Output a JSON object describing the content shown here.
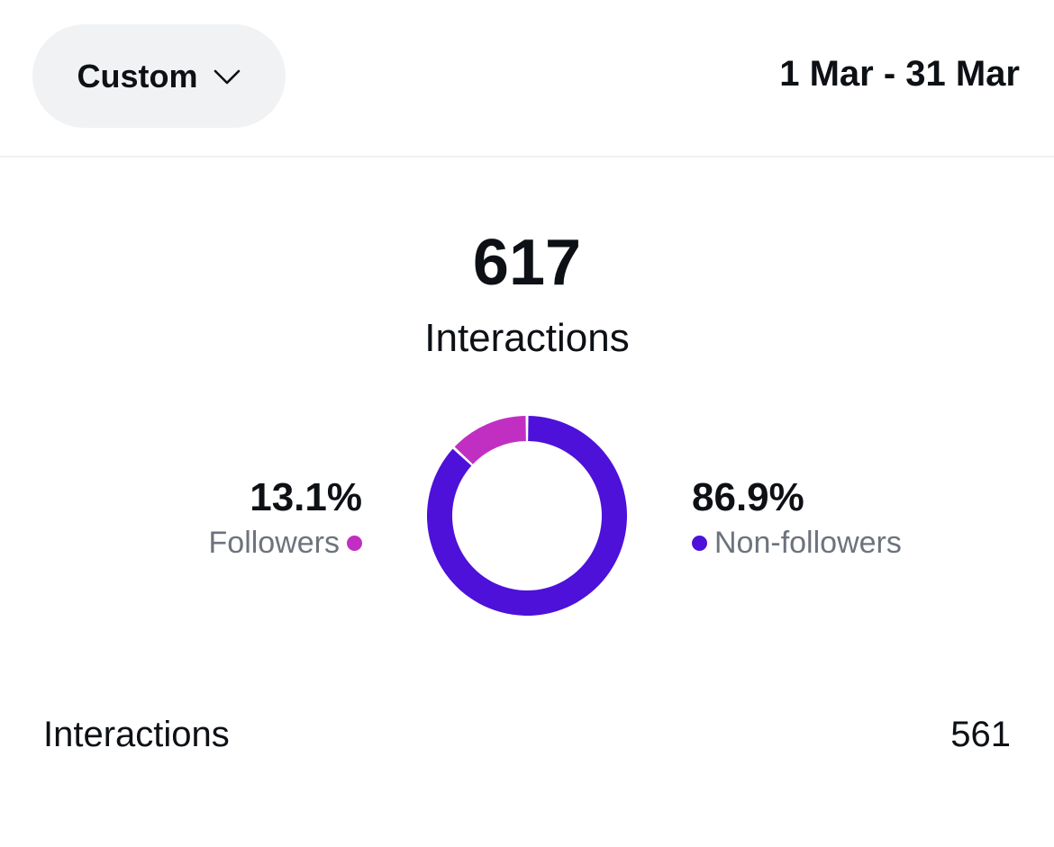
{
  "header": {
    "range_selector": {
      "label": "Custom",
      "icon": "chevron-down-icon"
    },
    "date_range": "1 Mar - 31 Mar"
  },
  "summary": {
    "total": "617",
    "label": "Interactions"
  },
  "breakdown": {
    "followers": {
      "percent": "13.1%",
      "label": "Followers",
      "color": "#c02fc2"
    },
    "non_followers": {
      "percent": "86.9%",
      "label": "Non-followers",
      "color": "#4d11d9"
    }
  },
  "chart_data": {
    "type": "pie",
    "title": "",
    "categories": [
      "Followers",
      "Non-followers"
    ],
    "values": [
      13.1,
      86.9
    ],
    "colors": [
      "#c02fc2",
      "#4d11d9"
    ],
    "style": "donut"
  },
  "rows": [
    {
      "label": "Interactions",
      "value": "561"
    }
  ]
}
